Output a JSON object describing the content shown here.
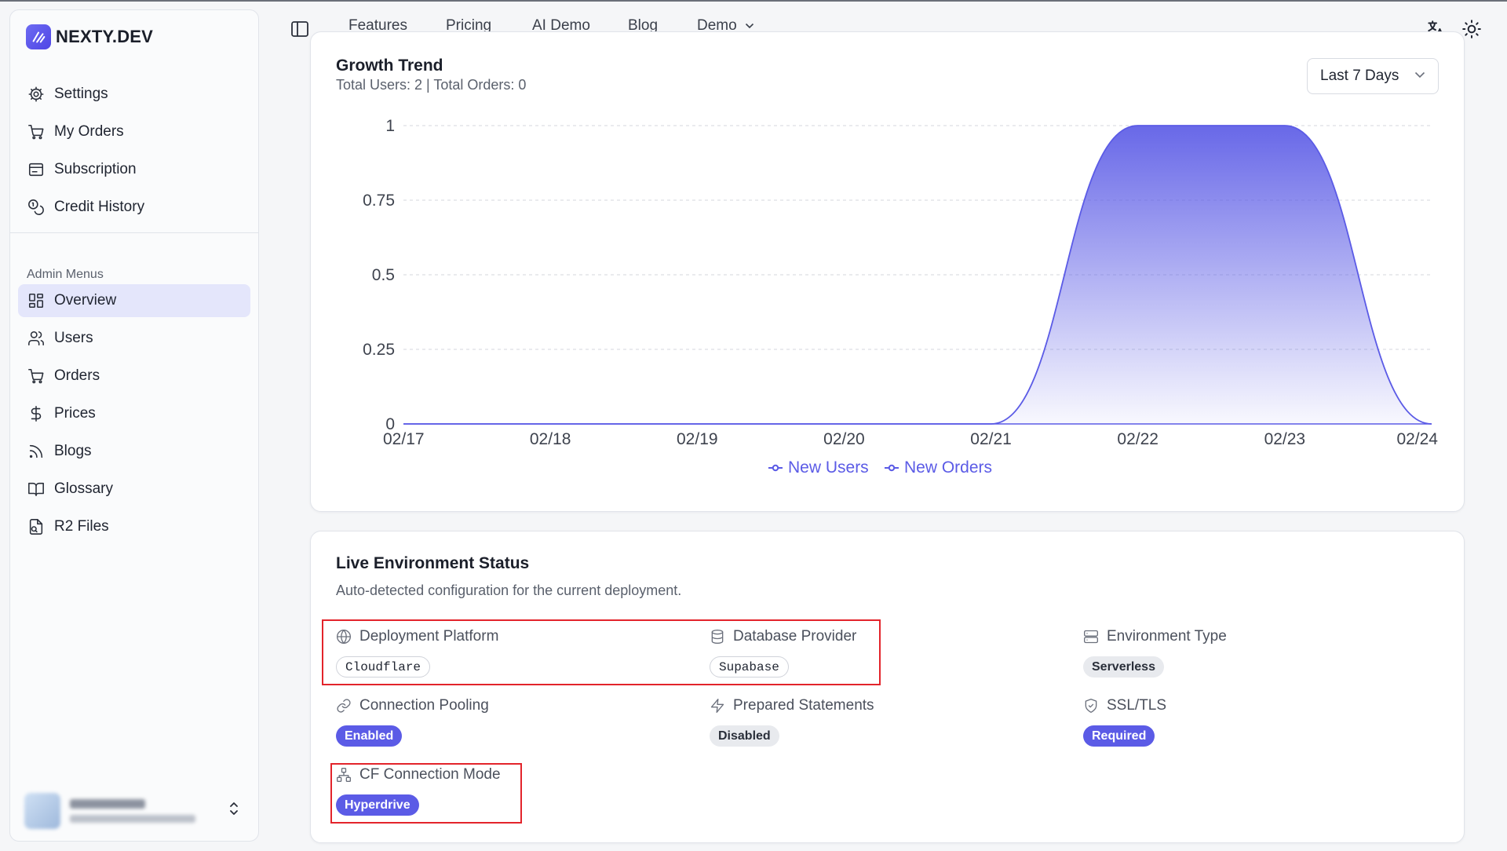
{
  "brand": {
    "name": "NEXTY.DEV"
  },
  "sidebar": {
    "user_items": [
      {
        "label": "Settings",
        "icon": "gear-icon"
      },
      {
        "label": "My Orders",
        "icon": "cart-icon"
      },
      {
        "label": "Subscription",
        "icon": "card-icon"
      },
      {
        "label": "Credit History",
        "icon": "coins-icon"
      }
    ],
    "admin_section_label": "Admin Menus",
    "admin_items": [
      {
        "label": "Overview",
        "icon": "grid-icon",
        "active": true
      },
      {
        "label": "Users",
        "icon": "users-icon"
      },
      {
        "label": "Orders",
        "icon": "cart-icon"
      },
      {
        "label": "Prices",
        "icon": "dollar-icon"
      },
      {
        "label": "Blogs",
        "icon": "rss-icon"
      },
      {
        "label": "Glossary",
        "icon": "book-icon"
      },
      {
        "label": "R2 Files",
        "icon": "file-icon"
      }
    ]
  },
  "topnav": {
    "items": [
      "Features",
      "Pricing",
      "AI Demo",
      "Blog",
      "Demo"
    ]
  },
  "growth": {
    "title": "Growth Trend",
    "subtitle": "Total Users: 2 | Total Orders: 0",
    "range_select": "Last 7 Days"
  },
  "chart_data": {
    "type": "area",
    "x": [
      "02/17",
      "02/18",
      "02/19",
      "02/20",
      "02/21",
      "02/22",
      "02/23",
      "02/24"
    ],
    "series": [
      {
        "name": "New Users",
        "values": [
          0,
          0,
          0,
          0,
          0,
          1,
          1,
          0
        ]
      },
      {
        "name": "New Orders",
        "values": [
          0,
          0,
          0,
          0,
          0,
          0,
          0,
          0
        ]
      }
    ],
    "yticks": [
      "0",
      "0.25",
      "0.5",
      "0.75",
      "1"
    ],
    "ylim": [
      0,
      1
    ],
    "grid": true,
    "legend": "bottom-center",
    "colors": {
      "users": "#5b5be6",
      "orders": "#5b5be6"
    }
  },
  "env": {
    "title": "Live Environment Status",
    "subtitle": "Auto-detected configuration for the current deployment.",
    "items": [
      {
        "label": "Deployment Platform",
        "value": "Cloudflare",
        "icon": "globe-icon",
        "style": "outline"
      },
      {
        "label": "Database Provider",
        "value": "Supabase",
        "icon": "database-icon",
        "style": "outline"
      },
      {
        "label": "Environment Type",
        "value": "Serverless",
        "icon": "server-icon",
        "style": "gray"
      },
      {
        "label": "Connection Pooling",
        "value": "Enabled",
        "icon": "link-icon",
        "style": "primary"
      },
      {
        "label": "Prepared Statements",
        "value": "Disabled",
        "icon": "zap-icon",
        "style": "gray"
      },
      {
        "label": "SSL/TLS",
        "value": "Required",
        "icon": "shield-check-icon",
        "style": "primary"
      },
      {
        "label": "CF Connection Mode",
        "value": "Hyperdrive",
        "icon": "network-icon",
        "style": "primary"
      }
    ]
  },
  "colors": {
    "accent": "#5b5be6",
    "highlight": "#e3242b"
  }
}
